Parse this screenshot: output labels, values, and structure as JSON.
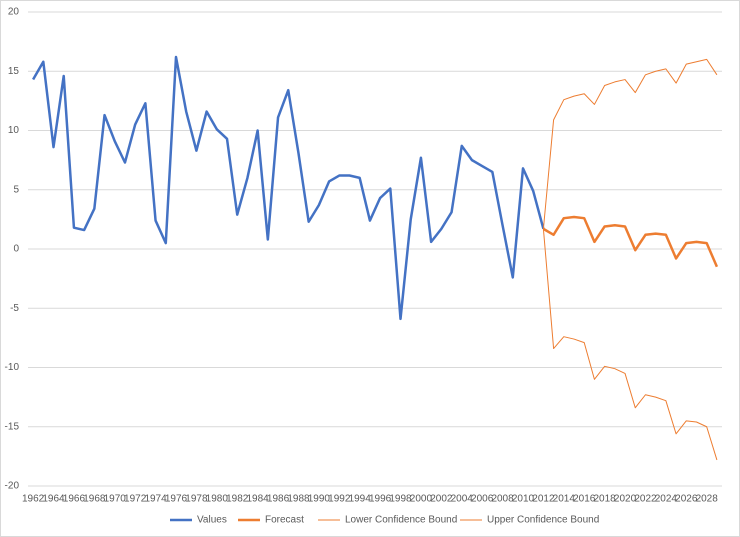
{
  "chart_data": {
    "type": "line",
    "x": [
      1962,
      1963,
      1964,
      1965,
      1966,
      1967,
      1968,
      1969,
      1970,
      1971,
      1972,
      1973,
      1974,
      1975,
      1976,
      1977,
      1978,
      1979,
      1980,
      1981,
      1982,
      1983,
      1984,
      1985,
      1986,
      1987,
      1988,
      1989,
      1990,
      1991,
      1992,
      1993,
      1994,
      1995,
      1996,
      1997,
      1998,
      1999,
      2000,
      2001,
      2002,
      2003,
      2004,
      2005,
      2006,
      2007,
      2008,
      2009,
      2010,
      2011,
      2012,
      2013,
      2014,
      2015,
      2016,
      2017,
      2018,
      2019,
      2020,
      2021,
      2022,
      2023,
      2024,
      2025,
      2026,
      2027,
      2028,
      2029
    ],
    "xlim": [
      1961.5,
      2029.5
    ],
    "xticks": [
      1962,
      1964,
      1966,
      1968,
      1970,
      1972,
      1974,
      1976,
      1978,
      1980,
      1982,
      1984,
      1986,
      1988,
      1990,
      1992,
      1994,
      1996,
      1998,
      2000,
      2002,
      2004,
      2006,
      2008,
      2010,
      2012,
      2014,
      2016,
      2018,
      2020,
      2022,
      2024,
      2026,
      2028
    ],
    "ylim": [
      -20,
      20
    ],
    "yticks": [
      -20,
      -15,
      -10,
      -5,
      0,
      5,
      10,
      15,
      20
    ],
    "grid": true,
    "legend": "bottom",
    "series": [
      {
        "name": "Values",
        "color": "#4472c4",
        "line_width": 2.5,
        "values": [
          14.3,
          15.8,
          8.6,
          14.6,
          1.8,
          1.6,
          3.4,
          11.3,
          9.1,
          7.3,
          10.5,
          12.3,
          2.4,
          0.5,
          16.2,
          11.6,
          8.3,
          11.6,
          10.1,
          9.3,
          2.9,
          6.0,
          10.0,
          0.8,
          11.1,
          13.4,
          8.1,
          2.3,
          3.7,
          5.7,
          6.2,
          6.2,
          6.0,
          2.4,
          4.3,
          5.1,
          -5.9,
          2.5,
          7.7,
          0.6,
          1.7,
          3.1,
          8.7,
          7.5,
          7.0,
          6.5,
          2.0,
          -2.4,
          6.8,
          4.9,
          1.7,
          null,
          null,
          null,
          null,
          null,
          null,
          null,
          null,
          null,
          null,
          null,
          null,
          null,
          null,
          null,
          null,
          null
        ]
      },
      {
        "name": "Forecast",
        "color": "#ed7d31",
        "line_width": 2.5,
        "values": [
          null,
          null,
          null,
          null,
          null,
          null,
          null,
          null,
          null,
          null,
          null,
          null,
          null,
          null,
          null,
          null,
          null,
          null,
          null,
          null,
          null,
          null,
          null,
          null,
          null,
          null,
          null,
          null,
          null,
          null,
          null,
          null,
          null,
          null,
          null,
          null,
          null,
          null,
          null,
          null,
          null,
          null,
          null,
          null,
          null,
          null,
          null,
          null,
          null,
          null,
          1.7,
          1.2,
          2.6,
          2.7,
          2.6,
          0.6,
          1.9,
          2.0,
          1.9,
          -0.1,
          1.2,
          1.3,
          1.2,
          -0.8,
          0.5,
          0.6,
          0.5,
          -1.5
        ]
      },
      {
        "name": "Lower Confidence Bound",
        "color": "#ed7d31",
        "line_width": 1,
        "values": [
          null,
          null,
          null,
          null,
          null,
          null,
          null,
          null,
          null,
          null,
          null,
          null,
          null,
          null,
          null,
          null,
          null,
          null,
          null,
          null,
          null,
          null,
          null,
          null,
          null,
          null,
          null,
          null,
          null,
          null,
          null,
          null,
          null,
          null,
          null,
          null,
          null,
          null,
          null,
          null,
          null,
          null,
          null,
          null,
          null,
          null,
          null,
          null,
          null,
          null,
          1.7,
          -8.4,
          -7.4,
          -7.6,
          -7.9,
          -11.0,
          -9.9,
          -10.1,
          -10.5,
          -13.4,
          -12.3,
          -12.5,
          -12.8,
          -15.6,
          -14.5,
          -14.6,
          -15.0,
          -17.8
        ]
      },
      {
        "name": "Upper Confidence Bound",
        "color": "#ed7d31",
        "line_width": 1,
        "values": [
          null,
          null,
          null,
          null,
          null,
          null,
          null,
          null,
          null,
          null,
          null,
          null,
          null,
          null,
          null,
          null,
          null,
          null,
          null,
          null,
          null,
          null,
          null,
          null,
          null,
          null,
          null,
          null,
          null,
          null,
          null,
          null,
          null,
          null,
          null,
          null,
          null,
          null,
          null,
          null,
          null,
          null,
          null,
          null,
          null,
          null,
          null,
          null,
          null,
          null,
          1.7,
          10.9,
          12.6,
          12.9,
          13.1,
          12.2,
          13.8,
          14.1,
          14.3,
          13.2,
          14.7,
          15.0,
          15.2,
          14.0,
          15.6,
          15.8,
          16.0,
          14.7
        ]
      }
    ]
  }
}
